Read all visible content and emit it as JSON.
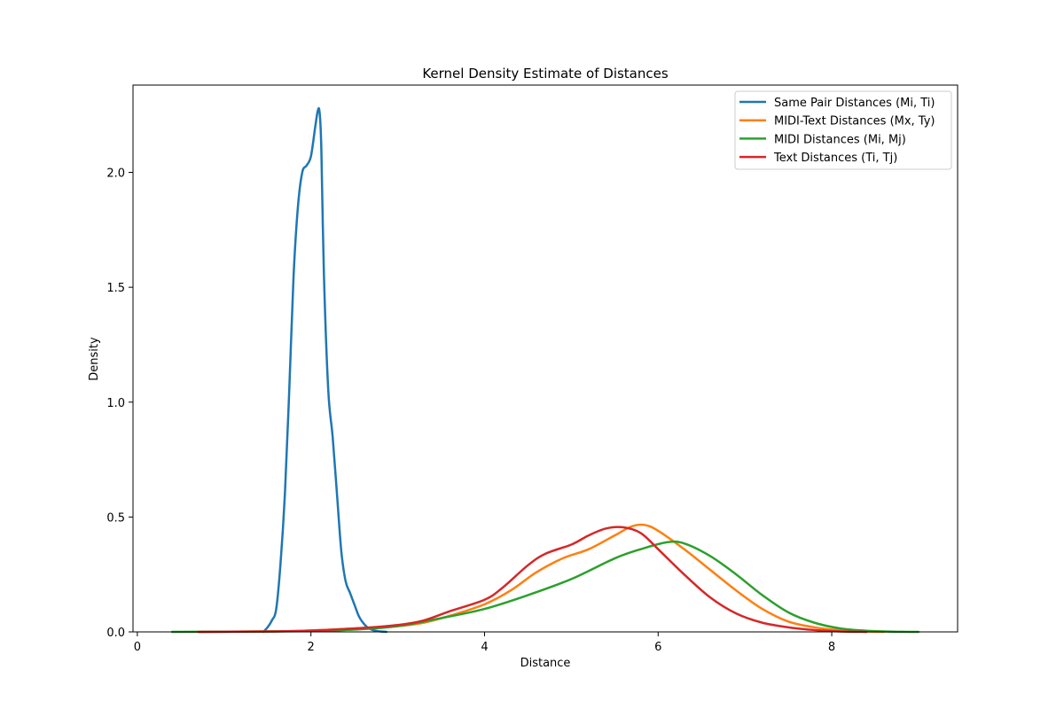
{
  "chart_data": {
    "type": "line",
    "title": "Kernel Density Estimate of Distances",
    "xlabel": "Distance",
    "ylabel": "Density",
    "xlim": [
      -0.05,
      9.45
    ],
    "ylim": [
      0,
      2.38
    ],
    "xticks": [
      0,
      2,
      4,
      6,
      8
    ],
    "yticks": [
      0.0,
      0.5,
      1.0,
      1.5,
      2.0
    ],
    "ytick_labels": [
      "0.0",
      "0.5",
      "1.0",
      "1.5",
      "2.0"
    ],
    "grid": false,
    "legend_position": "top-right",
    "series": [
      {
        "name": "Same Pair Distances (Mi, Ti)",
        "color": "#1f77b4",
        "x": [
          1.45,
          1.5,
          1.55,
          1.6,
          1.65,
          1.7,
          1.75,
          1.8,
          1.85,
          1.9,
          1.95,
          2.0,
          2.05,
          2.08,
          2.1,
          2.12,
          2.15,
          2.2,
          2.25,
          2.3,
          2.35,
          2.4,
          2.45,
          2.5,
          2.55,
          2.6,
          2.65,
          2.7,
          2.75,
          2.8,
          2.87
        ],
        "y": [
          0.0,
          0.02,
          0.05,
          0.1,
          0.3,
          0.6,
          1.05,
          1.55,
          1.85,
          2.0,
          2.03,
          2.07,
          2.2,
          2.27,
          2.26,
          2.1,
          1.55,
          1.05,
          0.85,
          0.6,
          0.35,
          0.22,
          0.17,
          0.12,
          0.07,
          0.04,
          0.02,
          0.01,
          0.005,
          0.002,
          0.0
        ]
      },
      {
        "name": "MIDI-Text Distances (Mx, Ty)",
        "color": "#ff7f0e",
        "x": [
          0.7,
          1.5,
          2.0,
          2.5,
          3.0,
          3.3,
          3.6,
          4.0,
          4.3,
          4.6,
          4.9,
          5.2,
          5.5,
          5.7,
          5.85,
          6.0,
          6.3,
          6.6,
          6.9,
          7.2,
          7.5,
          7.8,
          8.1,
          8.4,
          8.6
        ],
        "y": [
          0.0,
          0.002,
          0.006,
          0.015,
          0.025,
          0.04,
          0.07,
          0.12,
          0.18,
          0.26,
          0.32,
          0.36,
          0.42,
          0.46,
          0.465,
          0.44,
          0.36,
          0.27,
          0.18,
          0.1,
          0.045,
          0.02,
          0.007,
          0.002,
          0.0
        ]
      },
      {
        "name": "MIDI Distances (Mi, Mj)",
        "color": "#2ca02c",
        "x": [
          0.4,
          1.0,
          1.5,
          2.0,
          2.5,
          3.0,
          3.5,
          4.0,
          4.5,
          5.0,
          5.5,
          5.8,
          6.1,
          6.3,
          6.6,
          6.9,
          7.2,
          7.5,
          7.8,
          8.1,
          8.4,
          8.7,
          9.0
        ],
        "y": [
          0.0,
          0.001,
          0.002,
          0.004,
          0.01,
          0.025,
          0.06,
          0.1,
          0.16,
          0.23,
          0.32,
          0.36,
          0.39,
          0.385,
          0.33,
          0.25,
          0.16,
          0.085,
          0.04,
          0.015,
          0.005,
          0.001,
          0.0
        ]
      },
      {
        "name": "Text Distances (Ti, Tj)",
        "color": "#d62728",
        "x": [
          0.7,
          1.5,
          2.0,
          2.5,
          3.0,
          3.3,
          3.6,
          4.0,
          4.2,
          4.5,
          4.7,
          5.0,
          5.2,
          5.4,
          5.6,
          5.8,
          6.0,
          6.3,
          6.6,
          6.9,
          7.2,
          7.5,
          7.8,
          8.1,
          8.4
        ],
        "y": [
          0.0,
          0.002,
          0.006,
          0.015,
          0.03,
          0.05,
          0.09,
          0.14,
          0.19,
          0.29,
          0.34,
          0.38,
          0.42,
          0.45,
          0.455,
          0.43,
          0.36,
          0.25,
          0.15,
          0.08,
          0.04,
          0.02,
          0.008,
          0.002,
          0.0
        ]
      }
    ]
  }
}
